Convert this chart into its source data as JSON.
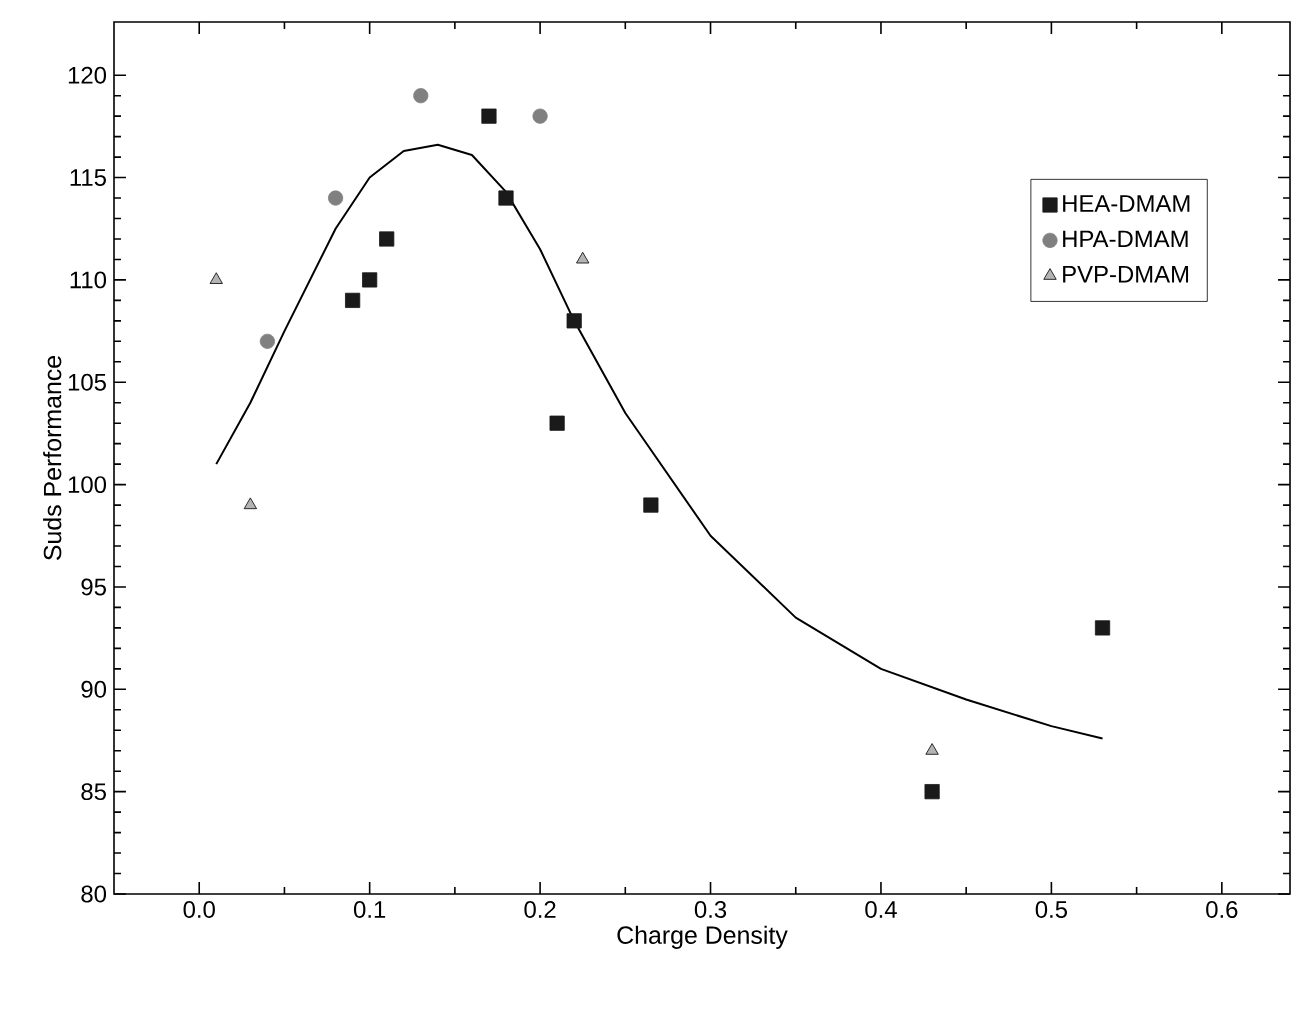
{
  "chart_data": {
    "type": "scatter",
    "xlabel": "Charge Density",
    "ylabel": "Suds Performance",
    "xlim": [
      -0.05,
      0.64
    ],
    "ylim": [
      80,
      122.6
    ],
    "xticks": [
      {
        "value": 0,
        "label": "0.0"
      },
      0.1,
      0.2,
      0.3,
      0.4,
      0.5,
      0.6
    ],
    "yticks": [
      80,
      85,
      90,
      95,
      100,
      105,
      110,
      115,
      120
    ],
    "legend": "top right",
    "grid": false,
    "series": [
      {
        "name": "HEA-DMAM",
        "color": "#1a1a1a",
        "marker": "square",
        "x": [
          0.09,
          0.1,
          0.11,
          0.17,
          0.18,
          0.21,
          0.22,
          0.265,
          0.43,
          0.53
        ],
        "values": [
          109,
          110,
          112,
          118,
          114,
          103,
          108,
          99,
          85,
          93
        ]
      },
      {
        "name": "HPA-DMAM",
        "color": "#808080",
        "marker": "circle",
        "x": [
          0.04,
          0.08,
          0.13,
          0.2
        ],
        "values": [
          107,
          114,
          119,
          118
        ]
      },
      {
        "name": "PVP-DMAM",
        "color": "#b4b4b4",
        "marker": "triangle",
        "x": [
          0.01,
          0.03,
          0.225,
          0.43
        ],
        "values": [
          110,
          99,
          111,
          87
        ]
      },
      {
        "type": "line",
        "color": "#000000",
        "marker": "none",
        "x": [
          0.01,
          0.03,
          0.05,
          0.08,
          0.1,
          0.12,
          0.14,
          0.16,
          0.18,
          0.2,
          0.22,
          0.25,
          0.3,
          0.35,
          0.4,
          0.45,
          0.5,
          0.53
        ],
        "values": [
          101,
          104,
          107.5,
          112.5,
          115,
          116.3,
          116.6,
          116.1,
          114.3,
          111.5,
          108,
          103.5,
          97.5,
          93.5,
          91,
          89.5,
          88.2,
          87.6
        ]
      }
    ]
  }
}
